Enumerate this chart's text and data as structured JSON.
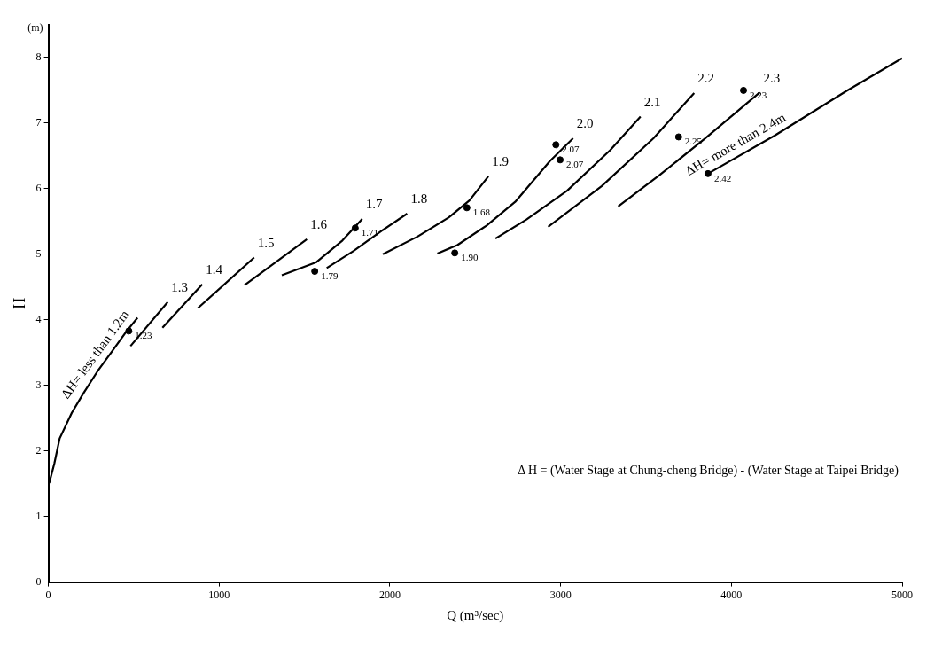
{
  "chart_data": {
    "type": "line",
    "xlabel": "Q (m³/sec)",
    "ylabel": "H",
    "annotations": [
      "(m)",
      "Δ H = (Water Stage at Chung-cheng Bridge) - (Water Stage at Taipei Bridge)",
      {
        "text": "1.23",
        "x": 471,
        "y": 3.83
      },
      {
        "text": "1.79",
        "x": 1560,
        "y": 4.74
      },
      {
        "text": "1.71",
        "x": 1797,
        "y": 5.4
      },
      {
        "text": "1.68",
        "x": 2451,
        "y": 5.71
      },
      {
        "text": "1.90",
        "x": 2380,
        "y": 5.02
      },
      {
        "text": "2.07",
        "x": 2972,
        "y": 6.67
      },
      {
        "text": "2.07",
        "x": 2997,
        "y": 6.44
      },
      {
        "text": "2.25",
        "x": 3691,
        "y": 6.79
      },
      {
        "text": "2.23",
        "x": 4071,
        "y": 7.5
      },
      {
        "text": "2.42",
        "x": 3863,
        "y": 6.23
      }
    ],
    "xlim": [
      0,
      5000
    ],
    "ylim": [
      0,
      8.5
    ],
    "xticks": [
      0,
      1000,
      2000,
      3000,
      4000,
      5000
    ],
    "yticks": [
      0,
      1,
      2,
      3,
      4,
      5,
      6,
      7,
      8
    ],
    "grid": false,
    "legend": false,
    "series": [
      {
        "name": "ΔH= less than 1.2m",
        "color": "#000000",
        "x": [
          5,
          35,
          66,
          137,
          203,
          289,
          370,
          456,
          522
        ],
        "values": [
          1.51,
          1.81,
          2.19,
          2.58,
          2.87,
          3.22,
          3.51,
          3.82,
          4.03
        ]
      },
      {
        "name": "1.3",
        "color": "#000000",
        "x": [
          481,
          699
        ],
        "values": [
          3.6,
          4.27
        ]
      },
      {
        "name": "1.4",
        "color": "#000000",
        "x": [
          668,
          901
        ],
        "values": [
          3.88,
          4.54
        ]
      },
      {
        "name": "1.5",
        "color": "#000000",
        "x": [
          876,
          1205
        ],
        "values": [
          4.18,
          4.95
        ]
      },
      {
        "name": "1.6",
        "color": "#000000",
        "x": [
          1149,
          1514
        ],
        "values": [
          4.53,
          5.23
        ]
      },
      {
        "name": "1.7",
        "color": "#000000",
        "x": [
          1367,
          1570,
          1722,
          1838
        ],
        "values": [
          4.68,
          4.88,
          5.21,
          5.54
        ]
      },
      {
        "name": "1.8",
        "color": "#000000",
        "x": [
          1630,
          1787,
          1959,
          2101
        ],
        "values": [
          4.79,
          5.05,
          5.37,
          5.62
        ]
      },
      {
        "name": "1.9",
        "color": "#000000",
        "x": [
          1959,
          2162,
          2344,
          2466,
          2577
        ],
        "values": [
          5.0,
          5.27,
          5.56,
          5.82,
          6.19
        ]
      },
      {
        "name": "2.0",
        "color": "#000000",
        "x": [
          2278,
          2395,
          2567,
          2734,
          2937,
          3073
        ],
        "values": [
          5.01,
          5.14,
          5.44,
          5.8,
          6.42,
          6.77
        ]
      },
      {
        "name": "2.1",
        "color": "#000000",
        "x": [
          2618,
          2800,
          3038,
          3291,
          3468
        ],
        "values": [
          5.24,
          5.53,
          5.97,
          6.59,
          7.1
        ]
      },
      {
        "name": "2.2",
        "color": "#000000",
        "x": [
          2927,
          3241,
          3544,
          3782
        ],
        "values": [
          5.42,
          6.04,
          6.77,
          7.46
        ]
      },
      {
        "name": "2.3",
        "color": "#000000",
        "x": [
          3337,
          3580,
          3848,
          4167
        ],
        "values": [
          5.73,
          6.21,
          6.77,
          7.47
        ]
      },
      {
        "name": "ΔH= more than 2.4m",
        "color": "#000000",
        "x": [
          3863,
          4253,
          4673,
          5000
        ],
        "values": [
          6.23,
          6.81,
          7.49,
          7.99
        ]
      },
      {
        "type": "scatter",
        "marker": "circle",
        "color": "#000000",
        "x": [
          471,
          1560,
          1797,
          2451,
          2380,
          2972,
          2997,
          3691,
          4071,
          3863
        ],
        "values": [
          3.83,
          4.74,
          5.4,
          5.71,
          5.02,
          6.67,
          6.44,
          6.79,
          7.5,
          6.23
        ]
      }
    ]
  }
}
